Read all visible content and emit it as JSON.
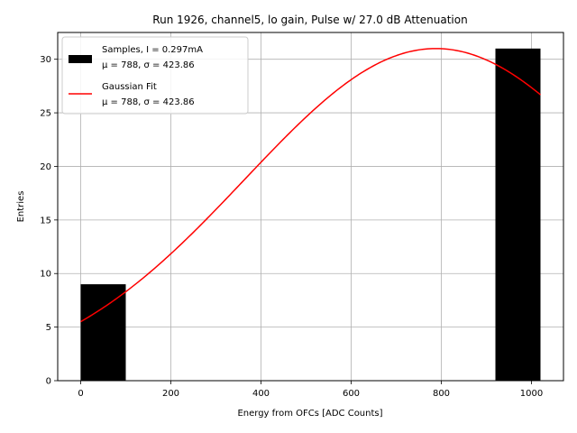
{
  "chart_data": {
    "type": "bar",
    "title": "Run 1926, channel5, lo gain, Pulse w/ 27.0 dB Attenuation",
    "xlabel": "Energy from OFCs [ADC Counts]",
    "ylabel": "Entries",
    "xlim": [
      -51,
      1071
    ],
    "ylim": [
      0,
      32.5
    ],
    "xticks": [
      0,
      200,
      400,
      600,
      800,
      1000
    ],
    "yticks": [
      0,
      5,
      10,
      15,
      20,
      25,
      30
    ],
    "grid": true,
    "legend_position": "top-left",
    "histogram": {
      "name": "Samples, I = 0.297mA",
      "stats": "μ = 788, σ = 423.86",
      "color": "#000000",
      "bins": [
        {
          "x0": 0,
          "x1": 100,
          "count": 9
        },
        {
          "x0": 920,
          "x1": 1020,
          "count": 31
        }
      ]
    },
    "fit": {
      "name": "Gaussian Fit",
      "stats": "μ = 788, σ = 423.86",
      "color": "#ff0000",
      "mu": 788,
      "sigma": 423.86,
      "amplitude": 31,
      "x_range": [
        0,
        1020
      ]
    }
  }
}
